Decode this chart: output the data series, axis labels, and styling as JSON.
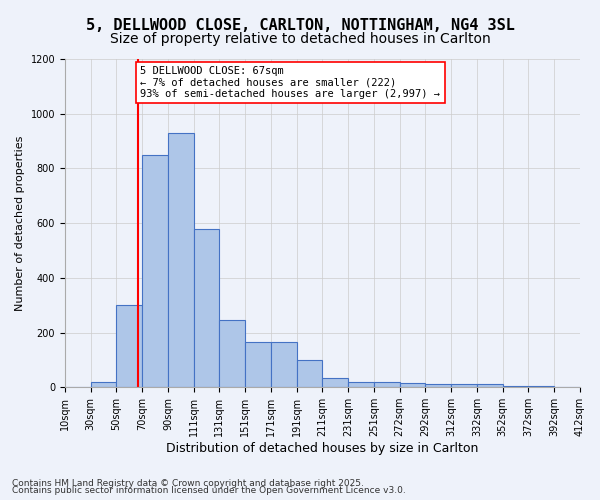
{
  "title1": "5, DELLWOOD CLOSE, CARLTON, NOTTINGHAM, NG4 3SL",
  "title2": "Size of property relative to detached houses in Carlton",
  "xlabel": "Distribution of detached houses by size in Carlton",
  "ylabel": "Number of detached properties",
  "bin_labels": [
    "10sqm",
    "30sqm",
    "50sqm",
    "70sqm",
    "90sqm",
    "111sqm",
    "131sqm",
    "151sqm",
    "171sqm",
    "191sqm",
    "211sqm",
    "231sqm",
    "251sqm",
    "272sqm",
    "292sqm",
    "312sqm",
    "332sqm",
    "352sqm",
    "372sqm",
    "392sqm",
    "412sqm"
  ],
  "bar_heights": [
    0,
    20,
    300,
    850,
    930,
    580,
    245,
    165,
    165,
    100,
    35,
    20,
    20,
    15,
    10,
    10,
    10,
    5,
    5,
    0
  ],
  "bar_color": "#aec6e8",
  "bar_edgecolor": "#4472c4",
  "bar_linewidth": 0.8,
  "grid_color": "#cccccc",
  "background_color": "#eef2fa",
  "vline_color": "red",
  "annotation_text": "5 DELLWOOD CLOSE: 67sqm\n← 7% of detached houses are smaller (222)\n93% of semi-detached houses are larger (2,997) →",
  "annotation_box_color": "white",
  "annotation_box_edgecolor": "red",
  "annotation_fontsize": 7.5,
  "ylim": [
    0,
    1200
  ],
  "yticks": [
    0,
    200,
    400,
    600,
    800,
    1000,
    1200
  ],
  "footer1": "Contains HM Land Registry data © Crown copyright and database right 2025.",
  "footer2": "Contains public sector information licensed under the Open Government Licence v3.0.",
  "title_fontsize": 11,
  "subtitle_fontsize": 10,
  "xlabel_fontsize": 9,
  "ylabel_fontsize": 8,
  "tick_fontsize": 7,
  "footer_fontsize": 6.5
}
